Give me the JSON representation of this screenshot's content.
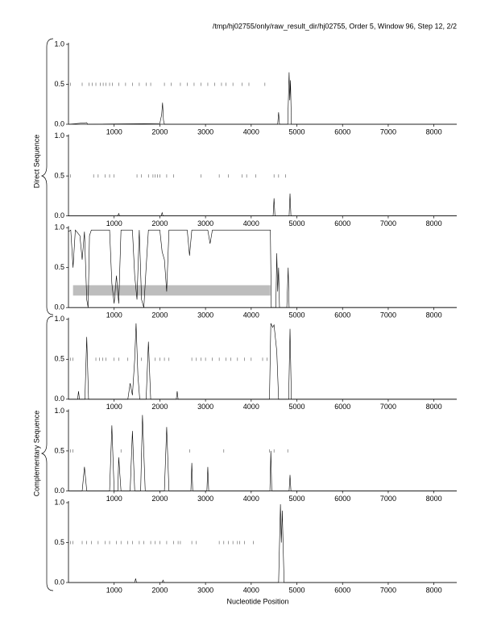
{
  "title": "/tmp/hj02755/only/raw_result_dir/hj02755, Order 5, Window 96, Step 12, 2/2",
  "x_label": "Nucleotide Position",
  "groups": [
    "Direct Sequence",
    "Complementary Sequence"
  ],
  "chart_data": [
    {
      "type": "line",
      "color": "#000000",
      "x": [
        0,
        400,
        420,
        2000,
        2040,
        2060,
        2080,
        2100,
        4580,
        4600,
        4620,
        4800,
        4830,
        4845,
        4860,
        4880,
        8500
      ],
      "values": [
        0,
        0.02,
        0,
        0.01,
        0.12,
        0.27,
        0.05,
        0,
        0,
        0.15,
        0,
        0,
        0.65,
        0.3,
        0.55,
        0,
        0
      ],
      "starts": [
        40,
        300,
        450,
        520,
        600,
        700,
        760,
        820,
        900,
        960,
        1100,
        1250,
        1400,
        1550,
        1700,
        1800,
        2100,
        2250,
        2450,
        2600,
        2750,
        2900,
        3050,
        3200,
        3350,
        3450,
        3600,
        3800,
        3950,
        4300
      ],
      "xlim": [
        0,
        8500
      ],
      "ylim": [
        0,
        1
      ],
      "xticks": [
        1000,
        2000,
        3000,
        4000,
        5000,
        6000,
        7000,
        8000
      ],
      "yticks": [
        {
          "value": 0,
          "label": "0.0"
        },
        {
          "value": 0.5,
          "label": "0.5"
        },
        {
          "value": 1,
          "label": "1.0"
        }
      ]
    },
    {
      "type": "line",
      "color": "#000000",
      "x": [
        0,
        1080,
        1100,
        1120,
        2030,
        2050,
        2070,
        4480,
        4500,
        4520,
        4830,
        4850,
        4870,
        8500
      ],
      "values": [
        0,
        0,
        0.03,
        0,
        0,
        0.04,
        0,
        0,
        0.22,
        0,
        0,
        0.28,
        0,
        0
      ],
      "starts": [
        40,
        550,
        650,
        800,
        900,
        1000,
        1500,
        1600,
        1750,
        1850,
        1900,
        1950,
        2000,
        2150,
        2300,
        2900,
        3300,
        3500,
        3800,
        3900,
        4100,
        4500,
        4600,
        4750
      ],
      "xlim": [
        0,
        8500
      ],
      "ylim": [
        0,
        1
      ],
      "xticks": [
        1000,
        2000,
        3000,
        4000,
        5000,
        6000,
        7000,
        8000
      ],
      "yticks": [
        {
          "value": 0,
          "label": "0.0"
        },
        {
          "value": 0.5,
          "label": "0.5"
        },
        {
          "value": 1,
          "label": "1.0"
        }
      ]
    },
    {
      "type": "line",
      "color": "#000000",
      "x": [
        0,
        50,
        100,
        150,
        250,
        300,
        350,
        400,
        430,
        460,
        500,
        900,
        950,
        1000,
        1050,
        1100,
        1150,
        1400,
        1450,
        1500,
        1550,
        1600,
        1650,
        1700,
        1750,
        2000,
        2050,
        2100,
        2150,
        2200,
        2600,
        2650,
        2700,
        3050,
        3100,
        3150,
        4420,
        4440,
        4540,
        4560,
        4580,
        4600,
        4620,
        4780,
        4810,
        4830,
        8500
      ],
      "values": [
        0.95,
        0.97,
        0.5,
        0.97,
        0.9,
        0.6,
        0.95,
        0.1,
        0,
        0.9,
        0.97,
        0.97,
        0.3,
        0.05,
        0.4,
        0.05,
        0.97,
        0.97,
        0.4,
        0.1,
        0.97,
        0.1,
        0,
        0.5,
        0.97,
        0.97,
        0.7,
        0.6,
        0.2,
        0.97,
        0.97,
        0.65,
        0.97,
        0.97,
        0.8,
        0.97,
        0.97,
        0,
        0,
        0.68,
        0.2,
        0.5,
        0,
        0,
        0.5,
        0,
        0
      ],
      "region": {
        "x": [
          100,
          4420
        ],
        "y": [
          0.15,
          0.28
        ]
      },
      "xlim": [
        0,
        8500
      ],
      "ylim": [
        0,
        1
      ],
      "xticks": [
        1000,
        2000,
        3000,
        4000,
        5000,
        6000,
        7000,
        8000
      ],
      "yticks": [
        {
          "value": 0,
          "label": "0.0"
        },
        {
          "value": 0.5,
          "label": "0.5"
        },
        {
          "value": 1,
          "label": "1.0"
        }
      ]
    },
    {
      "type": "line",
      "color": "#000000",
      "x": [
        0,
        200,
        220,
        240,
        360,
        400,
        440,
        1300,
        1350,
        1400,
        1450,
        1480,
        1520,
        1560,
        1700,
        1750,
        1800,
        2360,
        2380,
        2400,
        4400,
        4430,
        4470,
        4500,
        4560,
        4600,
        4820,
        4850,
        4880,
        8500
      ],
      "values": [
        0,
        0,
        0.1,
        0,
        0,
        0.78,
        0,
        0,
        0.2,
        0.05,
        0.5,
        0.95,
        0.3,
        0,
        0,
        0.72,
        0,
        0,
        0.1,
        0,
        0,
        0.95,
        0.9,
        0.93,
        0.6,
        0,
        0,
        0.88,
        0,
        0
      ],
      "starts": [
        40,
        100,
        600,
        680,
        750,
        820,
        1000,
        1100,
        1300,
        1600,
        1900,
        2000,
        2100,
        2200,
        2700,
        2800,
        2900,
        3000,
        3150,
        3300,
        3450,
        3550,
        3700,
        3850,
        4000,
        4250,
        4350
      ],
      "xlim": [
        0,
        8500
      ],
      "ylim": [
        0,
        1
      ],
      "xticks": [
        1000,
        2000,
        3000,
        4000,
        5000,
        6000,
        7000,
        8000
      ],
      "yticks": [
        {
          "value": 0,
          "label": "0.0"
        },
        {
          "value": 0.5,
          "label": "0.5"
        },
        {
          "value": 1,
          "label": "1.0"
        }
      ]
    },
    {
      "type": "line",
      "color": "#000000",
      "x": [
        0,
        300,
        350,
        400,
        900,
        950,
        1000,
        1080,
        1100,
        1150,
        1350,
        1400,
        1450,
        1580,
        1620,
        1680,
        2100,
        2150,
        2200,
        2680,
        2700,
        2720,
        3030,
        3050,
        3070,
        4410,
        4430,
        4450,
        4830,
        4850,
        4870,
        8500
      ],
      "values": [
        0,
        0,
        0.3,
        0,
        0,
        0.82,
        0,
        0,
        0.42,
        0,
        0,
        0.75,
        0,
        0,
        0.95,
        0,
        0,
        0.8,
        0,
        0,
        0.35,
        0,
        0,
        0.3,
        0,
        0,
        0.5,
        0,
        0,
        0.2,
        0,
        0
      ],
      "starts": [
        40,
        100,
        1150,
        2650,
        3400,
        4400,
        4500,
        4800
      ],
      "xlim": [
        0,
        8500
      ],
      "ylim": [
        0,
        1
      ],
      "xticks": [
        1000,
        2000,
        3000,
        4000,
        5000,
        6000,
        7000,
        8000
      ],
      "yticks": [
        {
          "value": 0,
          "label": "0.0"
        },
        {
          "value": 0.5,
          "label": "0.5"
        },
        {
          "value": 1,
          "label": "1.0"
        }
      ]
    },
    {
      "type": "line",
      "color": "#000000",
      "x": [
        0,
        1450,
        1470,
        1490,
        2050,
        2070,
        2090,
        4600,
        4640,
        4660,
        4680,
        4720,
        8500
      ],
      "values": [
        0,
        0,
        0.05,
        0,
        0,
        0.03,
        0,
        0,
        0.98,
        0.5,
        0.9,
        0,
        0
      ],
      "starts": [
        40,
        100,
        300,
        400,
        500,
        650,
        800,
        900,
        1050,
        1150,
        1300,
        1400,
        1550,
        1650,
        1800,
        1900,
        2000,
        2150,
        2300,
        2400,
        2450,
        2700,
        2800,
        3300,
        3400,
        3500,
        3600,
        3700,
        3750,
        3850,
        4050
      ],
      "xlim": [
        0,
        8500
      ],
      "ylim": [
        0,
        1
      ],
      "xticks": [
        1000,
        2000,
        3000,
        4000,
        5000,
        6000,
        7000,
        8000
      ],
      "yticks": [
        {
          "value": 0,
          "label": "0.0"
        },
        {
          "value": 0.5,
          "label": "0.5"
        },
        {
          "value": 1,
          "label": "1.0"
        }
      ]
    }
  ]
}
